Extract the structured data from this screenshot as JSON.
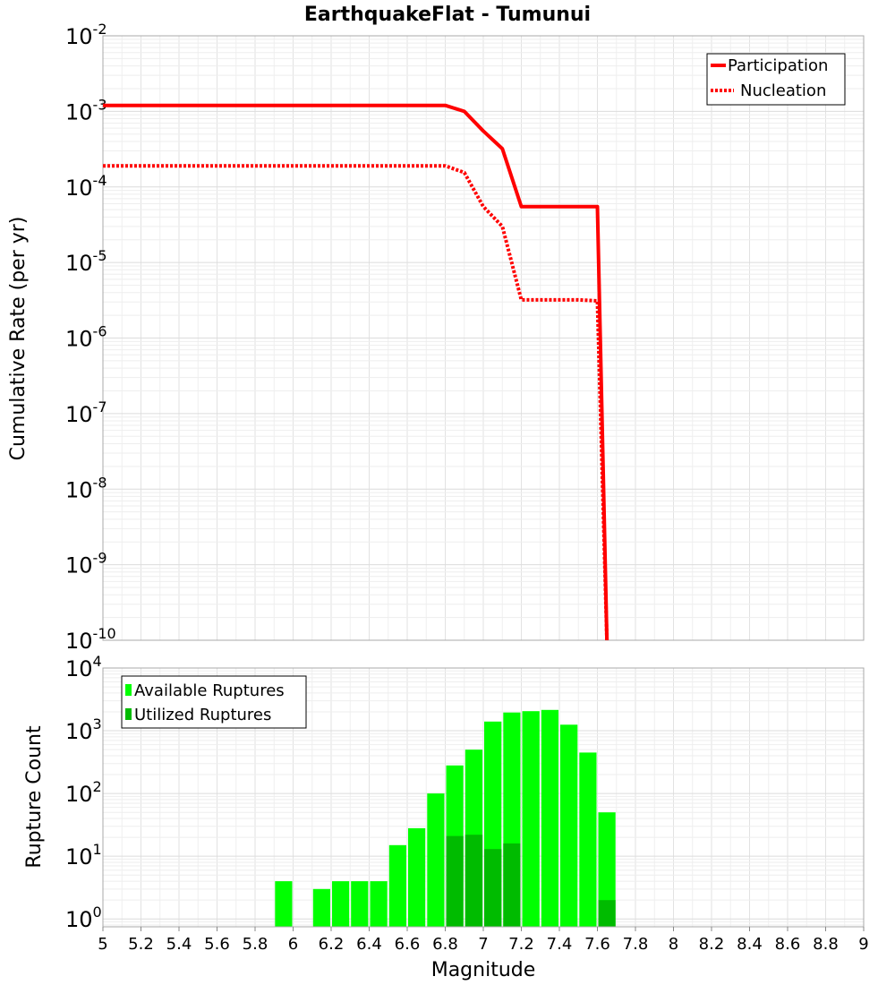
{
  "chart_data": [
    {
      "type": "line",
      "title": "EarthquakeFlat - Tumunui",
      "xlabel": "",
      "ylabel": "Cumulative Rate (per yr)",
      "xlim": [
        5,
        9
      ],
      "ylim": [
        1e-10,
        0.01
      ],
      "yscale": "log",
      "grid": true,
      "legend_position": "top-right",
      "y_tick_exponents": [
        "-10",
        "-9",
        "-8",
        "-7",
        "-6",
        "-5",
        "-4",
        "-3",
        "-2"
      ],
      "series": [
        {
          "name": "Participation",
          "style": "solid",
          "color": "#ff0000",
          "x": [
            5.0,
            6.8,
            6.9,
            7.0,
            7.1,
            7.2,
            7.3,
            7.4,
            7.5,
            7.6,
            7.65
          ],
          "y": [
            0.0012,
            0.0012,
            0.001,
            0.00055,
            0.00032,
            5.5e-05,
            5.5e-05,
            5.5e-05,
            5.5e-05,
            5.5e-05,
            1e-10
          ]
        },
        {
          "name": "Nucleation",
          "style": "dotted",
          "color": "#ff0000",
          "x": [
            5.0,
            6.8,
            6.9,
            7.0,
            7.1,
            7.2,
            7.3,
            7.4,
            7.5,
            7.6,
            7.65
          ],
          "y": [
            0.00019,
            0.00019,
            0.000155,
            5.5e-05,
            3e-05,
            3.2e-06,
            3.2e-06,
            3.2e-06,
            3.2e-06,
            3.1e-06,
            1e-10
          ]
        }
      ]
    },
    {
      "type": "bar",
      "title": "",
      "xlabel": "Magnitude",
      "ylabel": "Rupture Count",
      "xlim": [
        5,
        9
      ],
      "ylim": [
        0.75,
        10000
      ],
      "yscale": "log",
      "grid": true,
      "legend_position": "top-left",
      "bin_width": 0.1,
      "x_ticks": [
        "5",
        "5.2",
        "5.4",
        "5.6",
        "5.8",
        "6",
        "6.2",
        "6.4",
        "6.6",
        "6.8",
        "7",
        "7.2",
        "7.4",
        "7.6",
        "7.8",
        "8",
        "8.2",
        "8.4",
        "8.6",
        "8.8",
        "9"
      ],
      "y_tick_exponents": [
        "0",
        "1",
        "2",
        "3",
        "4"
      ],
      "series": [
        {
          "name": "Available Ruptures",
          "color": "#00ff00",
          "x": [
            5.95,
            6.15,
            6.25,
            6.35,
            6.45,
            6.55,
            6.65,
            6.75,
            6.85,
            6.95,
            7.05,
            7.15,
            7.25,
            7.35,
            7.45,
            7.55,
            7.65
          ],
          "values": [
            4,
            3,
            4,
            4,
            4,
            15,
            28,
            100,
            280,
            500,
            1400,
            1950,
            2050,
            2150,
            1250,
            450,
            50
          ]
        },
        {
          "name": "Utilized Ruptures",
          "color": "#00bb00",
          "x": [
            6.85,
            6.95,
            7.05,
            7.15,
            7.65
          ],
          "values": [
            21,
            22,
            13,
            16,
            2
          ]
        }
      ]
    }
  ]
}
